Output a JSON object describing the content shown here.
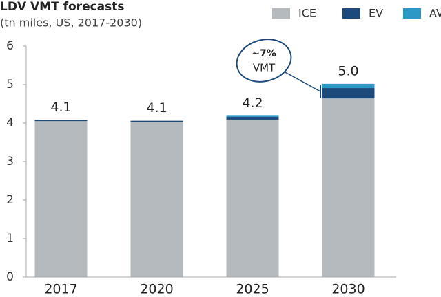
{
  "chart_data": {
    "type": "stacked_bar",
    "title": "LDV VMT forecasts",
    "subtitle": "(tn miles, US, 2017-2030)",
    "categories": [
      "2017",
      "2020",
      "2025",
      "2030"
    ],
    "series": [
      {
        "name": "ICE",
        "color": "#b4babe",
        "values": [
          4.05,
          4.03,
          4.09,
          4.64
        ]
      },
      {
        "name": "EV",
        "color": "#1b4a7b",
        "values": [
          0.03,
          0.03,
          0.07,
          0.27
        ]
      },
      {
        "name": "AV",
        "color": "#2b98c6",
        "values": [
          0,
          0,
          0.03,
          0.11
        ]
      }
    ],
    "total_labels": [
      "4.1",
      "4.1",
      "4.2",
      "5.0"
    ],
    "annotation": [
      "~7%",
      "VMT"
    ],
    "ylim": [
      0,
      6
    ],
    "yticks": [
      0,
      1,
      2,
      3,
      4,
      5,
      6
    ],
    "grid": false,
    "legend": "top-right"
  }
}
